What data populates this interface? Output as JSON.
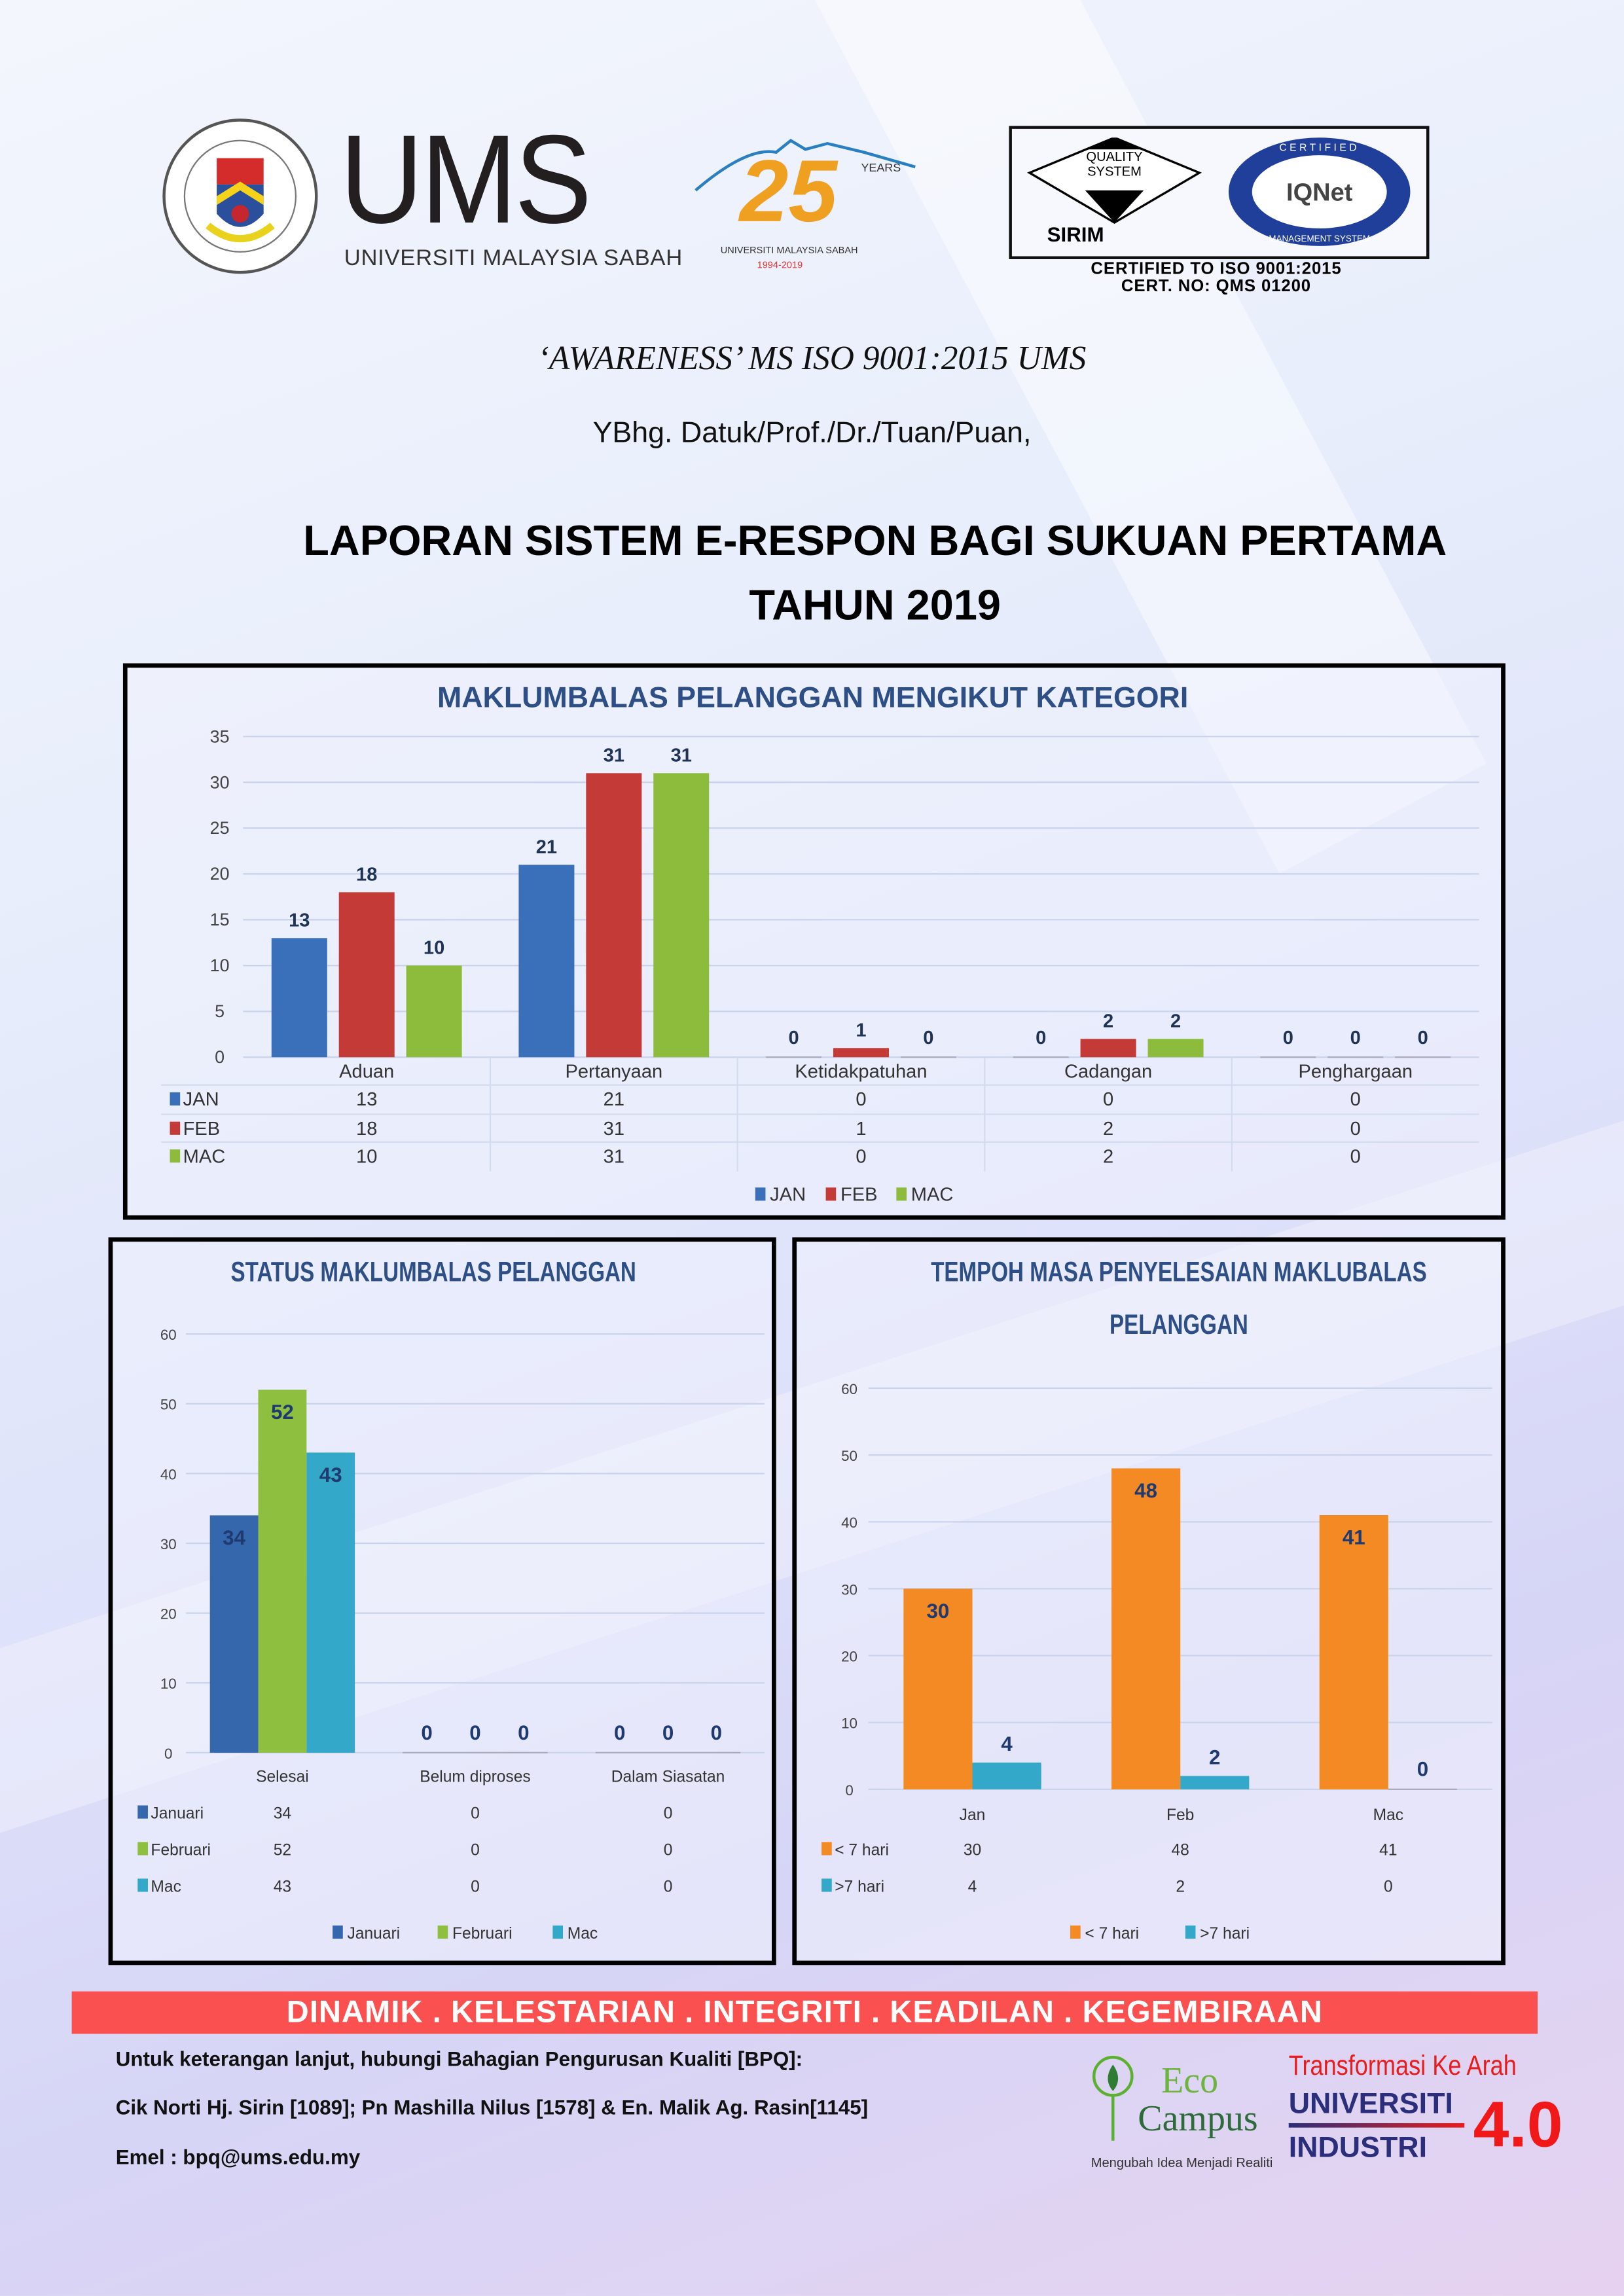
{
  "header": {
    "ums_logo_text": "UMS",
    "ums_logo_subtitle": "UNIVERSITI MALAYSIA SABAH",
    "seal_text": "UNIVERSITI MALAYSIA SABAH",
    "anniversary": {
      "number": "25",
      "years": "YEARS",
      "name": "UNIVERSITI MALAYSIA SABAH",
      "period": "1994-2019"
    },
    "sirim": {
      "quality": "QUALITY",
      "system": "SYSTEM",
      "sirim": "SIRIM",
      "iqnet_top": "CERTIFIED",
      "iqnet_name": "IQNet",
      "iqnet_bottom": "MANAGEMENT SYSTEM"
    },
    "cert_line1": "CERTIFIED TO ISO 9001:2015",
    "cert_line2": "CERT. NO: QMS 01200"
  },
  "awareness": "‘AWARENESS’ MS ISO 9001:2015 UMS",
  "greeting": "YBhg. Datuk/Prof./Dr./Tuan/Puan,",
  "title_line1": "LAPORAN SISTEM E-RESPON BAGI SUKUAN PERTAMA",
  "title_line2": "TAHUN 2019",
  "chart_data": [
    {
      "type": "bar",
      "title": "MAKLUMBALAS PELANGGAN MENGIKUT KATEGORI",
      "categories": [
        "Aduan",
        "Pertanyaan",
        "Ketidakpatuhan",
        "Cadangan",
        "Penghargaan"
      ],
      "series": [
        {
          "name": "JAN",
          "color": "#3a6fb9",
          "values": [
            13,
            21,
            0,
            0,
            0
          ]
        },
        {
          "name": "FEB",
          "color": "#c33a37",
          "values": [
            18,
            31,
            1,
            2,
            0
          ]
        },
        {
          "name": "MAC",
          "color": "#8dbb3c",
          "values": [
            10,
            31,
            0,
            2,
            0
          ]
        }
      ],
      "ylim": [
        0,
        35
      ],
      "yticks": [
        0,
        5,
        10,
        15,
        20,
        25,
        30,
        35
      ],
      "data_table": true,
      "legend": "bottom",
      "grid": true
    },
    {
      "type": "bar",
      "title": "STATUS MAKLUMBALAS PELANGGAN",
      "categories": [
        "Selesai",
        "Belum diproses",
        "Dalam Siasatan"
      ],
      "series": [
        {
          "name": "Januari",
          "color": "#3567ad",
          "values": [
            34,
            0,
            0
          ]
        },
        {
          "name": "Februari",
          "color": "#8fbf3e",
          "values": [
            52,
            0,
            0
          ]
        },
        {
          "name": "Mac",
          "color": "#33a8c8",
          "values": [
            43,
            0,
            0
          ]
        }
      ],
      "ylim": [
        0,
        60
      ],
      "yticks": [
        0,
        10,
        20,
        30,
        40,
        50,
        60
      ],
      "data_table": true,
      "legend": "bottom",
      "grid": true
    },
    {
      "type": "bar",
      "title": "TEMPOH MASA PENYELESAIAN MAKLUBALAS PELANGGAN",
      "title_lines": [
        "TEMPOH MASA PENYELESAIAN MAKLUBALAS",
        "PELANGGAN"
      ],
      "categories": [
        "Jan",
        "Feb",
        "Mac"
      ],
      "series": [
        {
          "name": "< 7 hari",
          "color": "#f48a24",
          "values": [
            30,
            48,
            41
          ]
        },
        {
          "name": ">7 hari",
          "color": "#33a8c8",
          "values": [
            4,
            2,
            0
          ]
        }
      ],
      "ylim": [
        0,
        60
      ],
      "yticks": [
        0,
        10,
        20,
        30,
        40,
        50,
        60
      ],
      "data_table": true,
      "legend": "bottom",
      "grid": true
    }
  ],
  "footer": {
    "values_banner": "DINAMIK . KELESTARIAN . INTEGRITI . KEADILAN . KEGEMBIRAAN",
    "contact_line1": "Untuk keterangan lanjut, hubungi Bahagian Pengurusan Kualiti [BPQ]:",
    "contact_line2": "Cik Norti Hj. Sirin [1089]; Pn Mashilla Nilus [1578] & En. Malik Ag. Rasin[1145]",
    "contact_line3": "Emel : bpq@ums.edu.my",
    "eco_campus": {
      "eco": "Eco",
      "campus": "Campus",
      "tagline": "Mengubah Idea Menjadi Realiti"
    },
    "transformasi": {
      "line1": "Transformasi Ke Arah",
      "line2": "UNIVERSITI",
      "line3": "INDUSTRI",
      "version": "4.0"
    }
  }
}
